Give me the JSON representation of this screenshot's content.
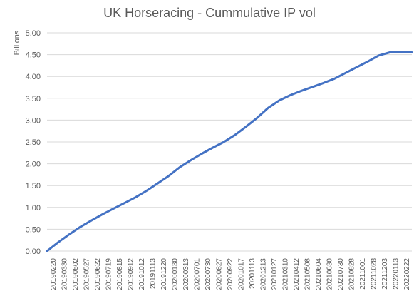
{
  "chart_data": {
    "type": "line",
    "title": "UK Horseracing - Cummulative IP vol",
    "ylabel": "Billions",
    "ylim": [
      0,
      5
    ],
    "y_ticks": [
      "0.00",
      "0.50",
      "1.00",
      "1.50",
      "2.00",
      "2.50",
      "3.00",
      "3.50",
      "4.00",
      "4.50",
      "5.00"
    ],
    "y_tick_values": [
      0,
      0.5,
      1,
      1.5,
      2,
      2.5,
      3,
      3.5,
      4,
      4.5,
      5
    ],
    "grid": true,
    "legend": "none",
    "x_ticks": [
      "20190220",
      "20190330",
      "20190502",
      "20190527",
      "20190622",
      "20190719",
      "20190815",
      "20190912",
      "20191012",
      "20191113",
      "20191220",
      "20200130",
      "20200313",
      "20200701",
      "20200730",
      "20200827",
      "20200922",
      "20201017",
      "20201113",
      "20201213",
      "20210127",
      "20210310",
      "20210412",
      "20210508",
      "20210604",
      "20210630",
      "20210730",
      "20210828",
      "20211001",
      "20211028",
      "20211203",
      "20220113",
      "20220222"
    ],
    "series": [
      {
        "color": "#4472C4",
        "x": [
          0,
          1,
          2,
          3,
          4,
          5,
          6,
          7,
          8,
          9,
          10,
          11,
          12,
          13,
          14,
          15,
          16,
          17,
          18,
          19,
          20,
          21,
          22,
          23,
          24,
          25,
          26,
          27,
          28,
          29,
          30,
          31,
          32,
          33
        ],
        "values": [
          0.0,
          0.2,
          0.38,
          0.55,
          0.7,
          0.84,
          0.97,
          1.1,
          1.23,
          1.38,
          1.55,
          1.72,
          1.92,
          2.08,
          2.23,
          2.37,
          2.5,
          2.66,
          2.85,
          3.05,
          3.28,
          3.45,
          3.57,
          3.67,
          3.76,
          3.85,
          3.95,
          4.08,
          4.21,
          4.34,
          4.48,
          4.55,
          4.55,
          4.55
        ]
      }
    ],
    "colors": {
      "line": "#4472C4",
      "grid": "#D9D9D9",
      "text": "#595959"
    }
  }
}
